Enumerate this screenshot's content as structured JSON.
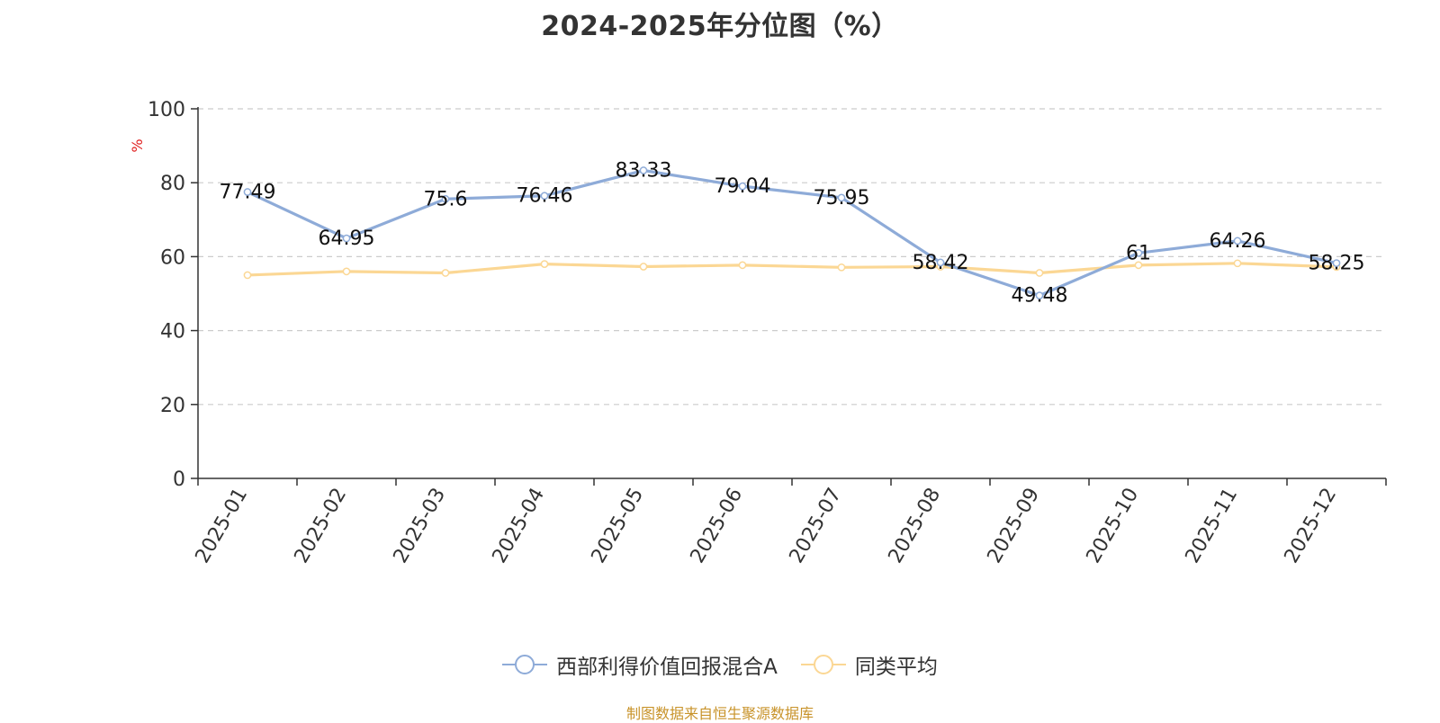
{
  "title": "2024-2025年分位图（%）",
  "source_note": "制图数据来自恒生聚源数据库",
  "colors": {
    "fund": "#8eabd8",
    "avg": "#fbd794",
    "unit": "#e02020",
    "footer": "#c8932a"
  },
  "chart_data": {
    "type": "line",
    "title": "2024-2025年分位图（%）",
    "ylabel": "%",
    "xlabel": "",
    "ylim": [
      0,
      100
    ],
    "yticks": [
      0,
      20,
      40,
      60,
      80,
      100
    ],
    "grid": true,
    "legend_position": "bottom",
    "categories": [
      "2025-01",
      "2025-02",
      "2025-03",
      "2025-04",
      "2025-05",
      "2025-06",
      "2025-07",
      "2025-08",
      "2025-09",
      "2025-10",
      "2025-11",
      "2025-12"
    ],
    "series": [
      {
        "name": "西部利得价值回报混合A",
        "color": "#8eabd8",
        "show_labels": true,
        "values": [
          77.49,
          64.95,
          75.6,
          76.46,
          83.33,
          79.04,
          75.95,
          58.42,
          49.48,
          61,
          64.26,
          58.25
        ]
      },
      {
        "name": "同类平均",
        "color": "#fbd794",
        "show_labels": false,
        "values": [
          55.0,
          56.0,
          55.6,
          58.0,
          57.3,
          57.7,
          57.1,
          57.3,
          55.6,
          57.7,
          58.2,
          57.2
        ]
      }
    ]
  }
}
